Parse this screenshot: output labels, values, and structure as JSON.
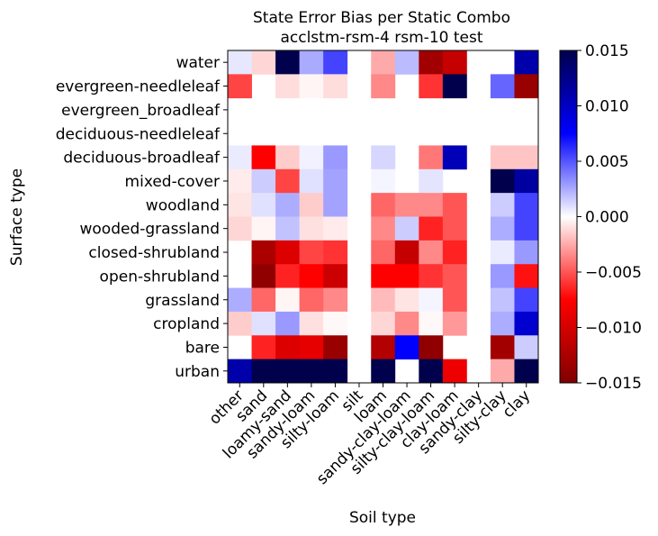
{
  "chart_data": {
    "type": "heatmap",
    "title": "State Error Bias per Static Combo",
    "subtitle": "acclstm-rsm-4 rsm-10 test",
    "xlabel": "Soil type",
    "ylabel": "Surface type",
    "x_categories": [
      "other",
      "sand",
      "loamy-sand",
      "sandy-loam",
      "silty-loam",
      "silt",
      "loam",
      "sandy-clay-loam",
      "silty-clay-loam",
      "clay-loam",
      "sandy-clay",
      "silty-clay",
      "clay"
    ],
    "y_categories": [
      "water",
      "evergreen-needleleaf",
      "evergreen_broadleaf",
      "deciduous-needleleaf",
      "deciduous-broadleaf",
      "mixed-cover",
      "woodland",
      "wooded-grassland",
      "closed-shrubland",
      "open-shrubland",
      "grassland",
      "cropland",
      "bare",
      "urban"
    ],
    "values": [
      [
        0.0007,
        -0.0012,
        0.015,
        0.0025,
        0.0055,
        null,
        -0.0025,
        0.002,
        -0.013,
        -0.011,
        null,
        null,
        0.011
      ],
      [
        -0.0055,
        null,
        -0.001,
        -0.0003,
        -0.001,
        null,
        -0.0035,
        null,
        -0.006,
        0.015,
        null,
        0.0045,
        -0.0135
      ],
      [
        null,
        null,
        null,
        null,
        null,
        null,
        null,
        null,
        null,
        null,
        null,
        null,
        null
      ],
      [
        null,
        null,
        null,
        null,
        null,
        null,
        null,
        null,
        null,
        null,
        null,
        null,
        null
      ],
      [
        0.0006,
        -0.0075,
        -0.0015,
        0.0004,
        0.003,
        null,
        0.0012,
        null,
        -0.004,
        0.0105,
        null,
        -0.0017,
        -0.0017
      ],
      [
        -0.0006,
        0.0015,
        -0.0055,
        0.0009,
        0.0027,
        null,
        0.0003,
        null,
        0.0008,
        null,
        null,
        0.015,
        0.0115
      ],
      [
        -0.0008,
        0.0009,
        0.0024,
        -0.0015,
        0.0027,
        null,
        -0.0045,
        -0.0035,
        -0.0035,
        -0.005,
        null,
        0.0015,
        0.0055
      ],
      [
        -0.0012,
        -0.0003,
        0.0018,
        -0.0009,
        -0.0006,
        null,
        -0.0035,
        0.0015,
        -0.0065,
        -0.005,
        null,
        0.0024,
        0.0055
      ],
      [
        null,
        -0.0125,
        -0.0095,
        -0.0055,
        -0.006,
        null,
        -0.0045,
        -0.011,
        -0.0035,
        -0.0065,
        null,
        0.0006,
        0.003
      ],
      [
        null,
        -0.014,
        -0.0065,
        -0.0075,
        -0.0105,
        null,
        -0.0075,
        -0.0075,
        -0.006,
        -0.005,
        null,
        0.003,
        -0.007
      ],
      [
        0.0024,
        -0.0045,
        -0.0003,
        -0.0045,
        -0.0035,
        null,
        -0.002,
        -0.0008,
        0.0003,
        -0.005,
        null,
        0.0018,
        0.0055
      ],
      [
        -0.0015,
        0.0009,
        0.003,
        -0.0009,
        -0.0002,
        null,
        -0.0012,
        -0.0035,
        -0.0002,
        -0.003,
        null,
        0.0024,
        0.0095
      ],
      [
        null,
        -0.0065,
        -0.0095,
        -0.009,
        -0.0135,
        null,
        -0.012,
        0.0075,
        -0.014,
        null,
        null,
        -0.013,
        0.0015
      ],
      [
        0.011,
        0.015,
        0.015,
        0.015,
        0.015,
        null,
        0.015,
        null,
        0.015,
        -0.0085,
        null,
        -0.0025,
        0.015
      ]
    ],
    "colormap": "seismic",
    "vmin": -0.015,
    "vmax": 0.015,
    "colorbar_ticks": [
      "0.015",
      "0.010",
      "0.005",
      "0.000",
      "−0.005",
      "−0.010",
      "−0.015"
    ],
    "colorbar_values": [
      0.015,
      0.01,
      0.005,
      0,
      -0.005,
      -0.01,
      -0.015
    ]
  }
}
